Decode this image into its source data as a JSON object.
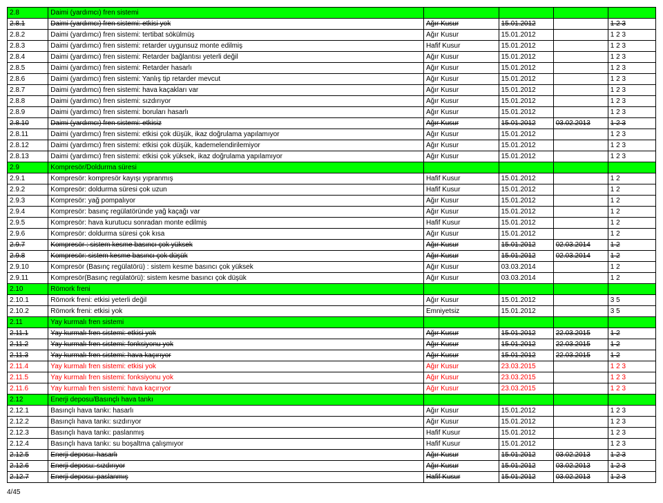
{
  "footer": "4/45",
  "colors": {
    "header_bg": "#00ff00",
    "red_text": "#ff0000",
    "border": "#000000",
    "bg": "#ffffff"
  },
  "rows": [
    {
      "code": "2.8",
      "desc": "Daimi (yardımcı) fren sistemi",
      "kusur": "",
      "d1": "",
      "d2": "",
      "lvl": "",
      "style": "header"
    },
    {
      "code": "2.8.1",
      "desc": "Daimi (yardımcı) fren sistemi: etkisi yok",
      "kusur": "Ağır Kusur",
      "d1": "15.01.2012",
      "d2": "",
      "lvl": "1 2 3",
      "style": "strike"
    },
    {
      "code": "2.8.2",
      "desc": "Daimi (yardımcı) fren sistemi: tertibat sökülmüş",
      "kusur": "Ağır Kusur",
      "d1": "15.01.2012",
      "d2": "",
      "lvl": "1 2 3",
      "style": ""
    },
    {
      "code": "2.8.3",
      "desc": "Daimi (yardımcı) fren sistemi: retarder uygunsuz monte edilmiş",
      "kusur": "Hafif Kusur",
      "d1": "15.01.2012",
      "d2": "",
      "lvl": "1 2 3",
      "style": ""
    },
    {
      "code": "2.8.4",
      "desc": "Daimi (yardımcı) fren sistemi: Retarder bağlantısı yeterli değil",
      "kusur": "Ağır Kusur",
      "d1": "15.01.2012",
      "d2": "",
      "lvl": "1 2 3",
      "style": ""
    },
    {
      "code": "2.8.5",
      "desc": "Daimi (yardımcı) fren sistemi: Retarder hasarlı",
      "kusur": "Ağır Kusur",
      "d1": "15.01.2012",
      "d2": "",
      "lvl": "1 2 3",
      "style": ""
    },
    {
      "code": "2.8.6",
      "desc": "Daimi (yardımcı) fren sistemi: Yanlış tip retarder mevcut",
      "kusur": "Ağır Kusur",
      "d1": "15.01.2012",
      "d2": "",
      "lvl": "1 2 3",
      "style": ""
    },
    {
      "code": "2.8.7",
      "desc": "Daimi (yardımcı) fren sistemi: hava kaçakları var",
      "kusur": "Ağır Kusur",
      "d1": "15.01.2012",
      "d2": "",
      "lvl": "1 2 3",
      "style": ""
    },
    {
      "code": "2.8.8",
      "desc": "Daimi (yardımcı) fren sistemi: sızdırıyor",
      "kusur": "Ağır Kusur",
      "d1": "15.01.2012",
      "d2": "",
      "lvl": "1 2 3",
      "style": ""
    },
    {
      "code": "2.8.9",
      "desc": "Daimi (yardımcı) fren sistemi: boruları hasarlı",
      "kusur": "Ağır Kusur",
      "d1": "15.01.2012",
      "d2": "",
      "lvl": "1 2 3",
      "style": ""
    },
    {
      "code": "2.8.10",
      "desc": "Daimi (yardımcı) fren sistemi: etkisiz",
      "kusur": "Ağır Kusur",
      "d1": "15.01.2012",
      "d2": "03.02.2013",
      "lvl": "1 2 3",
      "style": "strike"
    },
    {
      "code": "2.8.11",
      "desc": "Daimi (yardımcı) fren sistemi: etkisi çok düşük, ikaz doğrulama yapılamıyor",
      "kusur": "Ağır Kusur",
      "d1": "15.01.2012",
      "d2": "",
      "lvl": "1 2 3",
      "style": ""
    },
    {
      "code": "2.8.12",
      "desc": "Daimi (yardımcı) fren sistemi: etkisi çok düşük, kademelendirilemiyor",
      "kusur": "Ağır Kusur",
      "d1": "15.01.2012",
      "d2": "",
      "lvl": "1 2 3",
      "style": ""
    },
    {
      "code": "2.8.13",
      "desc": "Daimi (yardımcı) fren sistemi: etkisi çok yüksek, ikaz doğrulama yapılamıyor",
      "kusur": "Ağır Kusur",
      "d1": "15.01.2012",
      "d2": "",
      "lvl": "1 2 3",
      "style": ""
    },
    {
      "code": "2.9",
      "desc": "Kompresör/Doldurma süresi",
      "kusur": "",
      "d1": "",
      "d2": "",
      "lvl": "",
      "style": "header"
    },
    {
      "code": "2.9.1",
      "desc": "Kompresör: kompresör kayışı yıpranmış",
      "kusur": "Hafif Kusur",
      "d1": "15.01.2012",
      "d2": "",
      "lvl": "1 2",
      "style": ""
    },
    {
      "code": "2.9.2",
      "desc": "Kompresör: doldurma süresi çok uzun",
      "kusur": "Hafif Kusur",
      "d1": "15.01.2012",
      "d2": "",
      "lvl": "1 2",
      "style": ""
    },
    {
      "code": "2.9.3",
      "desc": "Kompresör: yağ pompalıyor",
      "kusur": "Ağır Kusur",
      "d1": "15.01.2012",
      "d2": "",
      "lvl": "1 2",
      "style": ""
    },
    {
      "code": "2.9.4",
      "desc": "Kompresör: basınç regülatöründe yağ kaçağı var",
      "kusur": "Ağır Kusur",
      "d1": "15.01.2012",
      "d2": "",
      "lvl": "1 2",
      "style": ""
    },
    {
      "code": "2.9.5",
      "desc": "Kompresör: hava kurutucu sonradan monte edilmiş",
      "kusur": "Hafif Kusur",
      "d1": "15.01.2012",
      "d2": "",
      "lvl": "1 2",
      "style": ""
    },
    {
      "code": "2.9.6",
      "desc": "Kompresör: doldurma süresi çok kısa",
      "kusur": "Ağır Kusur",
      "d1": "15.01.2012",
      "d2": "",
      "lvl": "1 2",
      "style": ""
    },
    {
      "code": "2.9.7",
      "desc": "Kompresör  : sistem kesme basıncı çok yüksek",
      "kusur": "Ağır Kusur",
      "d1": "15.01.2012",
      "d2": "02.03.2014",
      "lvl": "1 2",
      "style": "strike"
    },
    {
      "code": "2.9.8",
      "desc": "Kompresör: sistem kesme basıncı çok düşük",
      "kusur": "Ağır Kusur",
      "d1": "15.01.2012",
      "d2": "02.03.2014",
      "lvl": "1 2",
      "style": "strike"
    },
    {
      "code": "2.9.10",
      "desc": "Kompresör (Basınç regülatörü) : sistem kesme basıncı çok yüksek",
      "kusur": "Ağır Kusur",
      "d1": "03.03.2014",
      "d2": "",
      "lvl": "1 2",
      "style": ""
    },
    {
      "code": "2.9.11",
      "desc": "Kompresör(Basınç regülatörü): sistem kesme basıncı çok düşük",
      "kusur": "Ağır Kusur",
      "d1": "03.03.2014",
      "d2": "",
      "lvl": "1 2",
      "style": ""
    },
    {
      "code": "2.10",
      "desc": "Römork freni",
      "kusur": "",
      "d1": "",
      "d2": "",
      "lvl": "",
      "style": "header"
    },
    {
      "code": "2.10.1",
      "desc": "Römork freni: etkisi yeterli değil",
      "kusur": "Ağır Kusur",
      "d1": "15.01.2012",
      "d2": "",
      "lvl": "3 5",
      "style": ""
    },
    {
      "code": "2.10.2",
      "desc": "Römork freni: etkisi yok",
      "kusur": "Emniyetsiz",
      "d1": "15.01.2012",
      "d2": "",
      "lvl": "3 5",
      "style": ""
    },
    {
      "code": "2.11",
      "desc": "Yay kurmalı fren sistemi",
      "kusur": "",
      "d1": "",
      "d2": "",
      "lvl": "",
      "style": "header"
    },
    {
      "code": "2.11.1",
      "desc": "Yay kurmalı fren sistemi: etkisi yok",
      "kusur": "Ağır Kusur",
      "d1": "15.01.2012",
      "d2": "22.03.2015",
      "lvl": "1 2",
      "style": "strike"
    },
    {
      "code": "2.11.2",
      "desc": "Yay kurmalı fren sistemi: fonksiyonu yok",
      "kusur": "Ağır Kusur",
      "d1": "15.01.2012",
      "d2": "22.03.2015",
      "lvl": "1 2",
      "style": "strike"
    },
    {
      "code": "2.11.3",
      "desc": "Yay kurmalı fren sistemi: hava kaçırıyor",
      "kusur": "Ağır Kusur",
      "d1": "15.01.2012",
      "d2": "22.03.2015",
      "lvl": "1 2",
      "style": "strike"
    },
    {
      "code": "2.11.4",
      "desc": "Yay kurmalı fren sistemi: etkisi yok",
      "kusur": "Ağır Kusur",
      "d1": "23.03.2015",
      "d2": "",
      "lvl": "1 2 3",
      "style": "red"
    },
    {
      "code": "2.11.5",
      "desc": "Yay kurmalı fren sistemi: fonksiyonu yok",
      "kusur": "Ağır Kusur",
      "d1": "23.03.2015",
      "d2": "",
      "lvl": "1 2 3",
      "style": "red"
    },
    {
      "code": "2.11.6",
      "desc": "Yay kurmalı fren sistemi: hava kaçırıyor",
      "kusur": "Ağır Kusur",
      "d1": "23.03.2015",
      "d2": "",
      "lvl": "1 2 3",
      "style": "red"
    },
    {
      "code": "2.12",
      "desc": "Enerji deposu/Basınçlı hava tankı",
      "kusur": "",
      "d1": "",
      "d2": "",
      "lvl": "",
      "style": "header"
    },
    {
      "code": "2.12.1",
      "desc": "Basınçlı hava tankı: hasarlı",
      "kusur": "Ağır Kusur",
      "d1": "15.01.2012",
      "d2": "",
      "lvl": "1 2 3",
      "style": ""
    },
    {
      "code": "2.12.2",
      "desc": "Basınçlı hava tankı: sızdırıyor",
      "kusur": "Ağır Kusur",
      "d1": "15.01.2012",
      "d2": "",
      "lvl": "1 2 3",
      "style": ""
    },
    {
      "code": "2.12.3",
      "desc": "Basınçlı hava tankı:  paslanmış",
      "kusur": "Hafif Kusur",
      "d1": "15.01.2012",
      "d2": "",
      "lvl": "1 2 3",
      "style": ""
    },
    {
      "code": "2.12.4",
      "desc": "Basınçlı hava tankı: su boşaltma çalışmıyor",
      "kusur": "Hafif Kusur",
      "d1": "15.01.2012",
      "d2": "",
      "lvl": "1 2 3",
      "style": ""
    },
    {
      "code": "2.12.5",
      "desc": "Enerji deposu: hasarlı",
      "kusur": "Ağır Kusur",
      "d1": "15.01.2012",
      "d2": "03.02.2013",
      "lvl": "1 2 3",
      "style": "strike"
    },
    {
      "code": "2.12.6",
      "desc": "Enerji deposu: sızdırıyor",
      "kusur": "Ağır Kusur",
      "d1": "15.01.2012",
      "d2": "03.02.2013",
      "lvl": "1 2 3",
      "style": "strike"
    },
    {
      "code": "2.12.7",
      "desc": "Enerji deposu: paslanmış",
      "kusur": "Hafif Kusur",
      "d1": "15.01.2012",
      "d2": "03.02.2013",
      "lvl": "1 2 3",
      "style": "strike"
    }
  ]
}
